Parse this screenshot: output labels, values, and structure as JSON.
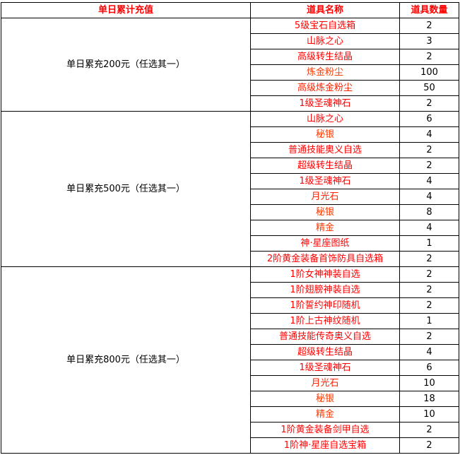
{
  "headers": [
    "单日累计充值",
    "道具名称",
    "道具数量"
  ],
  "colors": {
    "header": "#ff0000",
    "item_red": "#ff0000",
    "item_orange": "#ff3a00",
    "text": "#000000"
  },
  "tiers": [
    {
      "label": "单日累充200元（任选其一）",
      "items": [
        {
          "name": "5级宝石自选箱",
          "qty": "2",
          "color": "#ff0000"
        },
        {
          "name": "山脉之心",
          "qty": "3",
          "color": "#ff0000"
        },
        {
          "name": "高级转生结晶",
          "qty": "2",
          "color": "#ff0000"
        },
        {
          "name": "炼金粉尘",
          "qty": "100",
          "color": "#ff3a00"
        },
        {
          "name": "高级炼金粉尘",
          "qty": "50",
          "color": "#ff2000"
        },
        {
          "name": "1级圣魂神石",
          "qty": "2",
          "color": "#ff0000"
        }
      ]
    },
    {
      "label": "单日累充500元（任选其一）",
      "items": [
        {
          "name": "山脉之心",
          "qty": "6",
          "color": "#ff0000"
        },
        {
          "name": "秘银",
          "qty": "4",
          "color": "#ff3a00"
        },
        {
          "name": "普通技能奥义自选",
          "qty": "2",
          "color": "#ff0000"
        },
        {
          "name": "超级转生结晶",
          "qty": "2",
          "color": "#ff0000"
        },
        {
          "name": "1级圣魂神石",
          "qty": "4",
          "color": "#ff0000"
        },
        {
          "name": "月光石",
          "qty": "4",
          "color": "#ff2000"
        },
        {
          "name": "秘银",
          "qty": "8",
          "color": "#ff3a00"
        },
        {
          "name": "精金",
          "qty": "4",
          "color": "#ff3a00"
        },
        {
          "name": "神·星座图纸",
          "qty": "1",
          "color": "#ff0000"
        },
        {
          "name": "2阶黄金装备首饰防具自选箱",
          "qty": "2",
          "color": "#ff0000"
        }
      ]
    },
    {
      "label": "单日累充800元（任选其一）",
      "items": [
        {
          "name": "1阶女神神装自选",
          "qty": "2",
          "color": "#ff0000"
        },
        {
          "name": "1阶翅膀神装自选",
          "qty": "2",
          "color": "#ff0000"
        },
        {
          "name": "1阶誓约神印随机",
          "qty": "2",
          "color": "#ff0000"
        },
        {
          "name": "1阶上古神纹随机",
          "qty": "1",
          "color": "#ff0000"
        },
        {
          "name": "普通技能传奇奥义自选",
          "qty": "2",
          "color": "#ff0000"
        },
        {
          "name": "超级转生结晶",
          "qty": "4",
          "color": "#ff0000"
        },
        {
          "name": "1级圣魂神石",
          "qty": "6",
          "color": "#ff0000"
        },
        {
          "name": "月光石",
          "qty": "10",
          "color": "#ff2000"
        },
        {
          "name": "秘银",
          "qty": "18",
          "color": "#ff3a00"
        },
        {
          "name": "精金",
          "qty": "10",
          "color": "#ff3a00"
        },
        {
          "name": "1阶黄金装备剑甲自选",
          "qty": "2",
          "color": "#ff0000"
        },
        {
          "name": "1阶神·星座自选宝箱",
          "qty": "2",
          "color": "#ff0000"
        }
      ]
    }
  ]
}
